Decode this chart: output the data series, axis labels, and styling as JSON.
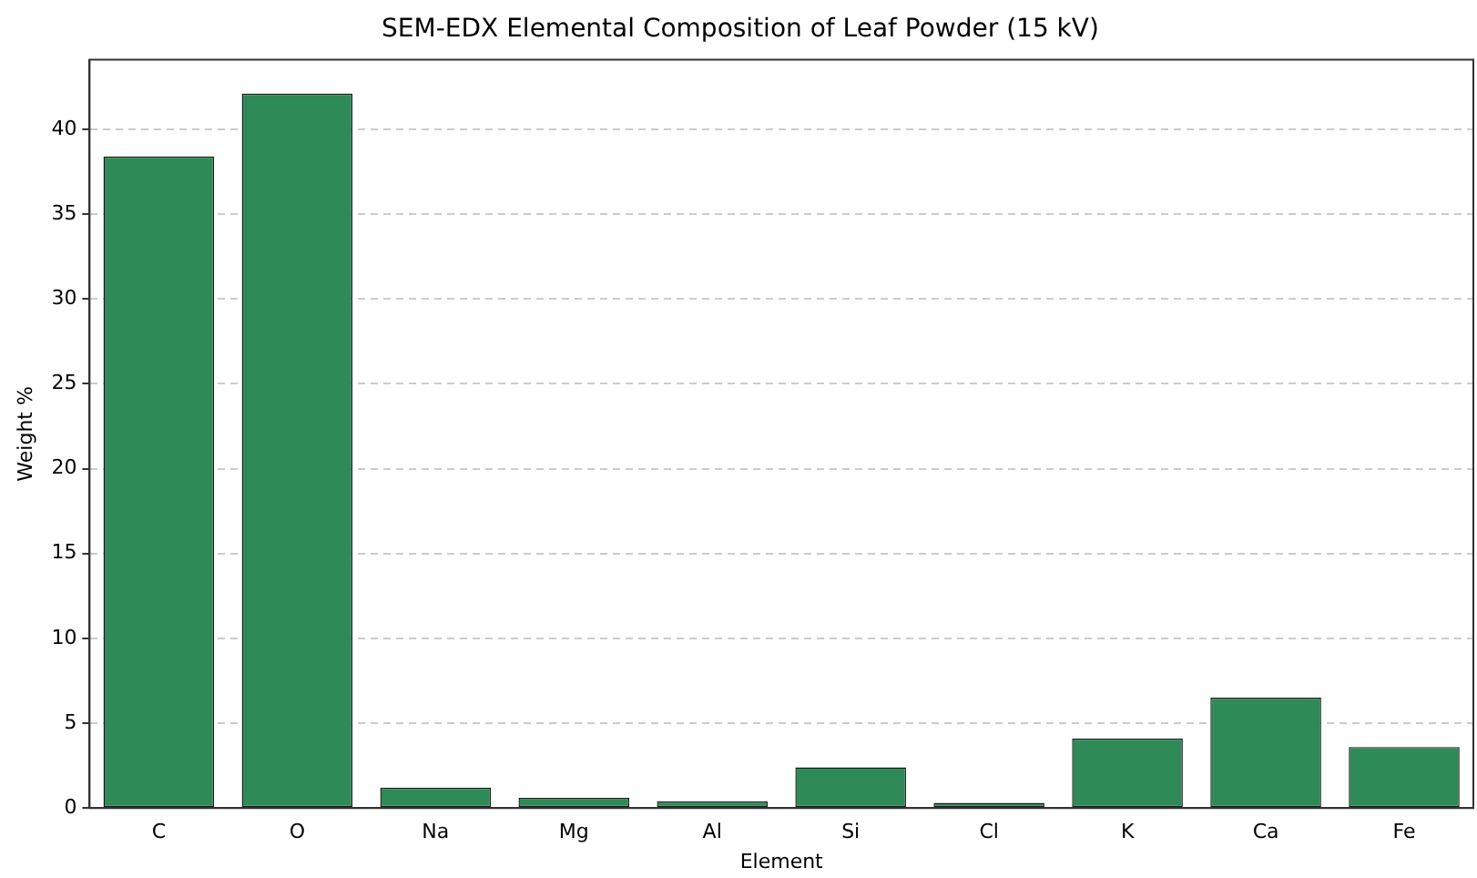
{
  "chart_data": {
    "type": "bar",
    "title": "SEM-EDX Elemental Composition of Leaf Powder (15 kV)",
    "xlabel": "Element",
    "ylabel": "Weight %",
    "categories": [
      "C",
      "O",
      "Na",
      "Mg",
      "Al",
      "Si",
      "Cl",
      "K",
      "Ca",
      "Fe"
    ],
    "values": [
      38.4,
      42.1,
      1.2,
      0.6,
      0.4,
      2.4,
      0.3,
      4.1,
      6.5,
      3.6
    ],
    "color": "#2e8b57",
    "ylim": [
      0,
      44.1
    ],
    "yticks": [
      0,
      5,
      10,
      15,
      20,
      25,
      30,
      35,
      40
    ],
    "grid": "y",
    "legend": false
  }
}
